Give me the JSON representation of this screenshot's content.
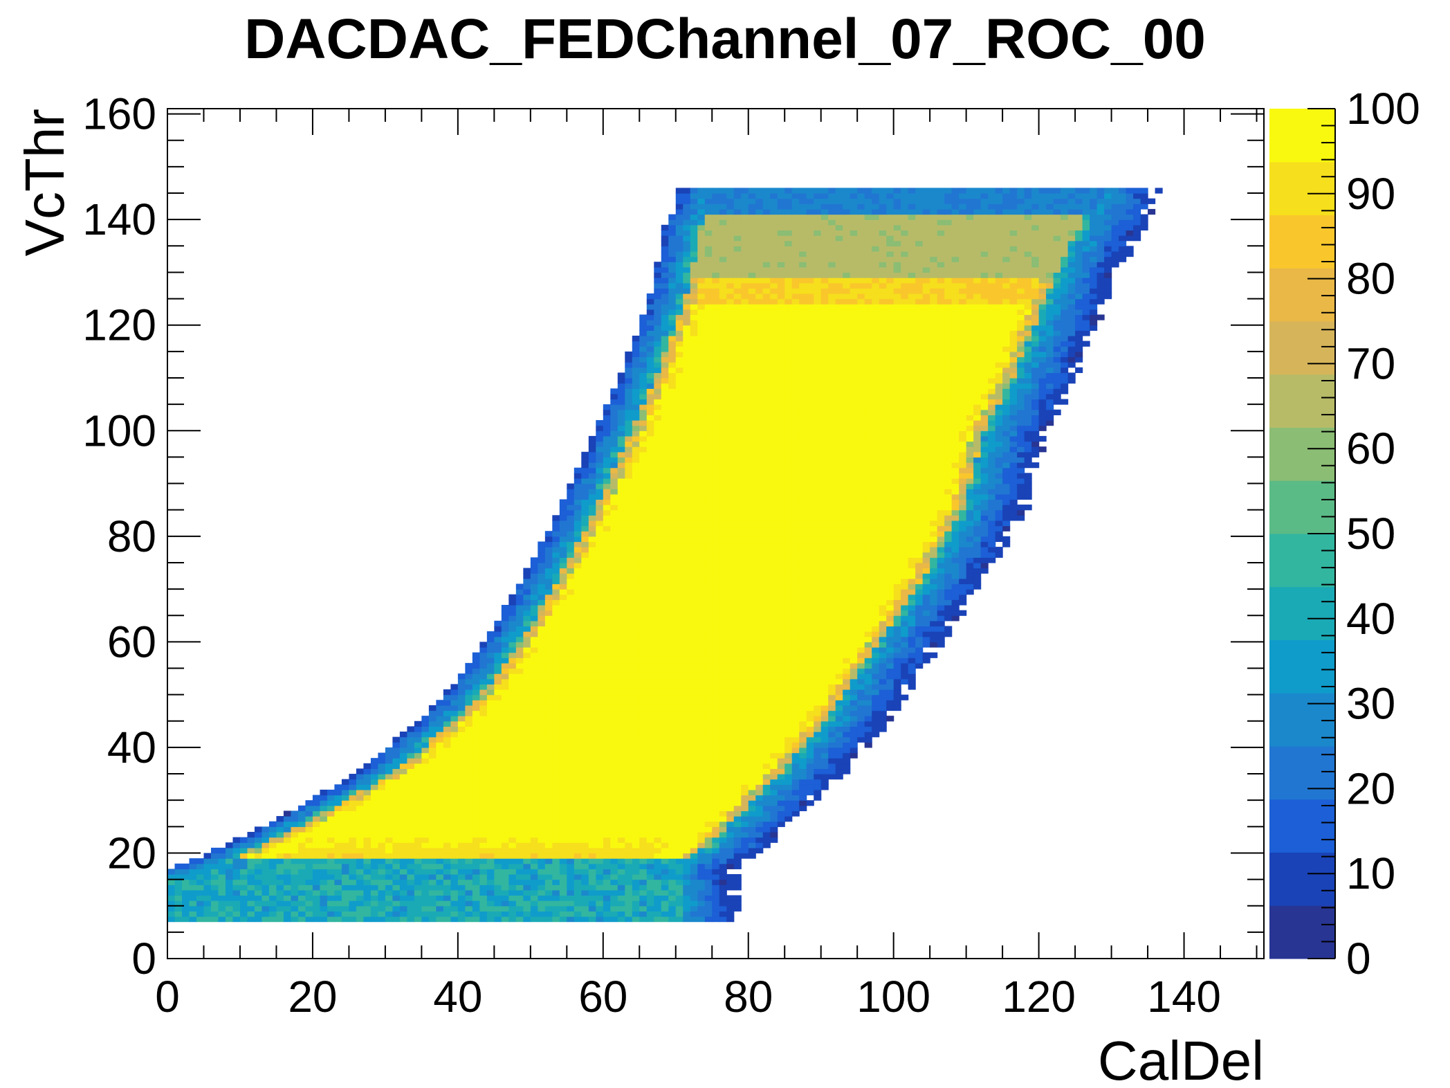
{
  "chart_data": {
    "type": "heatmap",
    "title": "DACDAC_FEDChannel_07_ROC_00",
    "xlabel": "CalDel",
    "ylabel": "VcThr",
    "xlim": [
      0,
      151
    ],
    "ylim": [
      0,
      161
    ],
    "zlim": [
      0,
      100
    ],
    "x_ticks": [
      0,
      20,
      40,
      60,
      80,
      100,
      120,
      140
    ],
    "y_ticks": [
      0,
      20,
      40,
      60,
      80,
      100,
      120,
      140,
      160
    ],
    "z_ticks": [
      0,
      10,
      20,
      30,
      40,
      50,
      60,
      70,
      80,
      90,
      100
    ],
    "legend": "colorbar-right",
    "grid": false,
    "palette": [
      "#283593",
      "#1a43b8",
      "#1c5fd6",
      "#2176d2",
      "#1b88cc",
      "#0f9ccb",
      "#1aaab6",
      "#32b6a0",
      "#5bbb86",
      "#8bbd74",
      "#b7bb68",
      "#d6b55a",
      "#e9b846",
      "#f9c72c",
      "#f6df1c",
      "#f9f90f"
    ],
    "region": {
      "description_of_shape": "Sheared band of efficient pixels; fully efficient (value 100) core, edges falling off",
      "core_value": 100,
      "upper_plateau_value": 62,
      "upper_plateau_vcthr": [
        129,
        140
      ],
      "orange_band_value": 85,
      "orange_band_vcthr": [
        124,
        129
      ],
      "lower_band_value": 80,
      "lower_band_vcthr": [
        16,
        27
      ],
      "max_vcthr": 145,
      "min_vcthr": 7,
      "left_edge": [
        [
          0,
          15
        ],
        [
          5,
          17
        ],
        [
          10,
          20
        ],
        [
          20,
          27
        ],
        [
          30,
          35
        ],
        [
          40,
          47
        ],
        [
          45,
          55
        ],
        [
          50,
          66
        ],
        [
          55,
          78
        ],
        [
          60,
          92
        ],
        [
          65,
          107
        ],
        [
          70,
          125
        ],
        [
          72,
          138
        ],
        [
          74,
          143
        ]
      ],
      "right_edge": [
        [
          70,
          17
        ],
        [
          75,
          21
        ],
        [
          80,
          28
        ],
        [
          85,
          35
        ],
        [
          90,
          43
        ],
        [
          95,
          53
        ],
        [
          100,
          63
        ],
        [
          105,
          73
        ],
        [
          110,
          85
        ],
        [
          113,
          100
        ],
        [
          117,
          110
        ],
        [
          120,
          120
        ],
        [
          123,
          130
        ],
        [
          126,
          138
        ],
        [
          128,
          143
        ]
      ]
    }
  }
}
